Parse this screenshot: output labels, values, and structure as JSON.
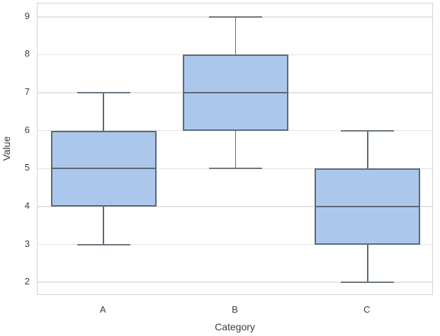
{
  "chart_data": {
    "type": "boxplot",
    "title": "",
    "xlabel": "Category",
    "ylabel": "Value",
    "categories": [
      "A",
      "B",
      "C"
    ],
    "series": [
      {
        "category": "A",
        "whisker_low": 3,
        "q1": 4,
        "median": 5,
        "q3": 6,
        "whisker_high": 7
      },
      {
        "category": "B",
        "whisker_low": 5,
        "q1": 6,
        "median": 7,
        "q3": 8,
        "whisker_high": 9
      },
      {
        "category": "C",
        "whisker_low": 2,
        "q1": 3,
        "median": 4,
        "q3": 5,
        "whisker_high": 6
      }
    ],
    "yticks": [
      2,
      3,
      4,
      5,
      6,
      7,
      8,
      9
    ],
    "ylim": [
      1.65,
      9.35
    ],
    "grid": true,
    "legend_visible": false,
    "colors": {
      "box_fill": "#abc8ec",
      "box_edge": "#5c6874",
      "whisker": "#5c6874",
      "grid": "#e3e3e3",
      "spine": "#d4d4d4",
      "text": "#3a3a3a",
      "background": "#ffffff"
    }
  }
}
